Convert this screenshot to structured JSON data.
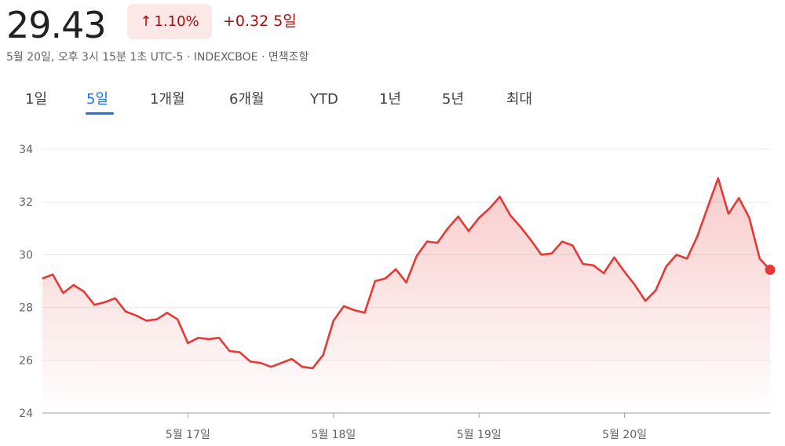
{
  "quote": {
    "price": "29.43",
    "percent_change": "1.10%",
    "arrow_icon": "arrow-up-icon",
    "abs_change": "+0.32",
    "period": "5일",
    "timestamp_line": "5월 20일, 오후 3시 15분 1초 UTC-5 · INDEXCBOE · 면책조항",
    "colors": {
      "down_text": "#a50e0e",
      "badge_bg": "#fce8e6",
      "line": "#e53935",
      "accent": "#1a73e8"
    }
  },
  "tabs": [
    {
      "label": "1일",
      "active": false
    },
    {
      "label": "5일",
      "active": true
    },
    {
      "label": "1개월",
      "active": false
    },
    {
      "label": "6개월",
      "active": false
    },
    {
      "label": "YTD",
      "active": false
    },
    {
      "label": "1년",
      "active": false
    },
    {
      "label": "5년",
      "active": false
    },
    {
      "label": "최대",
      "active": false
    }
  ],
  "chart_data": {
    "type": "area",
    "title": "",
    "xlabel": "",
    "ylabel": "",
    "ylim": [
      24,
      34
    ],
    "yticks": [
      24,
      26,
      28,
      30,
      32,
      34
    ],
    "grid": true,
    "xtick_labels": [
      {
        "label": "5월 17일",
        "index": 14
      },
      {
        "label": "5월 18일",
        "index": 28
      },
      {
        "label": "5월 19일",
        "index": 42
      },
      {
        "label": "5월 20일",
        "index": 56
      }
    ],
    "x_count": 70,
    "series": [
      {
        "values": [
          29.1,
          29.25,
          28.55,
          28.85,
          28.6,
          28.1,
          28.2,
          28.35,
          27.85,
          27.7,
          27.5,
          27.55,
          27.8,
          27.55,
          26.65,
          26.85,
          26.8,
          26.85,
          26.35,
          26.3,
          25.95,
          25.9,
          25.75,
          25.9,
          26.05,
          25.75,
          25.7,
          26.2,
          27.5,
          28.05,
          27.9,
          27.8,
          29.0,
          29.1,
          29.45,
          28.95,
          29.95,
          30.5,
          30.45,
          31.0,
          31.45,
          30.9,
          31.4,
          31.75,
          32.2,
          31.5,
          31.05,
          30.55,
          30.0,
          30.05,
          30.5,
          30.35,
          29.65,
          29.6,
          29.3,
          29.9,
          29.35,
          28.85,
          28.25,
          28.65,
          29.55,
          30.0,
          29.85,
          30.7,
          31.8,
          32.9,
          31.55,
          32.15,
          31.4,
          29.85,
          29.43
        ]
      }
    ]
  }
}
